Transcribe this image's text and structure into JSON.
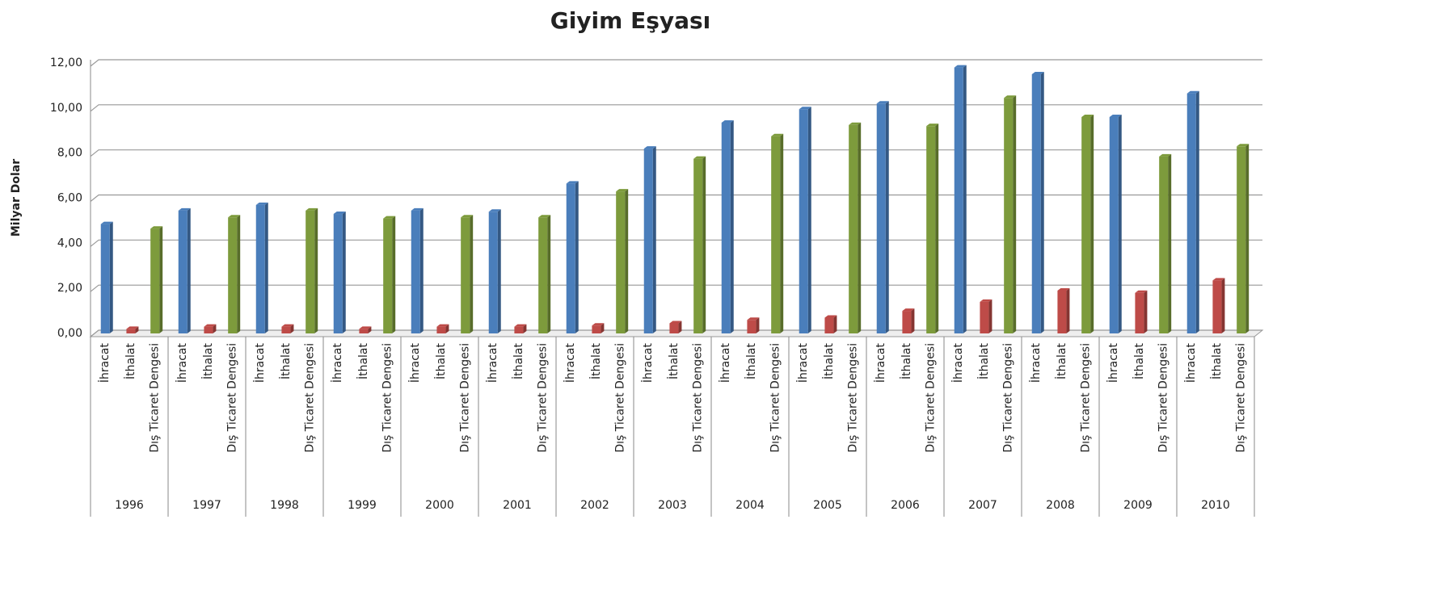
{
  "chart_data": {
    "type": "bar",
    "title": "Giyim Eşyası",
    "y_label": "Milyar Dolar",
    "categories": [
      "1996",
      "1997",
      "1998",
      "1999",
      "2000",
      "2001",
      "2002",
      "2003",
      "2004",
      "2005",
      "2006",
      "2007",
      "2008",
      "2009",
      "2010"
    ],
    "series": [
      {
        "name": "İhracat",
        "color": "#4a7ebb",
        "values": [
          4.85,
          5.45,
          5.7,
          5.3,
          5.45,
          5.4,
          6.65,
          8.2,
          9.35,
          9.95,
          10.2,
          11.8,
          11.5,
          9.6,
          10.65
        ]
      },
      {
        "name": "İthalat",
        "color": "#be4b48",
        "values": [
          0.2,
          0.3,
          0.3,
          0.2,
          0.3,
          0.3,
          0.35,
          0.45,
          0.6,
          0.7,
          1.0,
          1.4,
          1.9,
          1.8,
          2.35
        ]
      },
      {
        "name": "Dış Ticaret Dengesi",
        "color": "#7d9b3c",
        "values": [
          4.65,
          5.15,
          5.45,
          5.1,
          5.15,
          5.15,
          6.3,
          7.75,
          8.75,
          9.25,
          9.2,
          10.45,
          9.6,
          7.85,
          8.3
        ]
      }
    ],
    "ylim": [
      0,
      12
    ],
    "yticks": [
      {
        "value": 0,
        "label": "0,00"
      },
      {
        "value": 2,
        "label": "2,00"
      },
      {
        "value": 4,
        "label": "4,00"
      },
      {
        "value": 6,
        "label": "6,00"
      },
      {
        "value": 8,
        "label": "8,00"
      },
      {
        "value": 10,
        "label": "10,00"
      },
      {
        "value": 12,
        "label": "12,00"
      }
    ],
    "grid": true
  }
}
